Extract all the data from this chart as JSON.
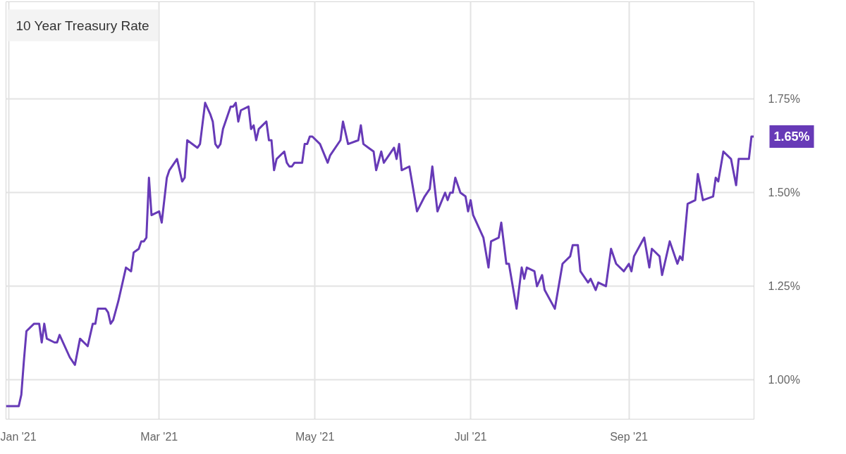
{
  "chart_data": {
    "type": "line",
    "title": "10 Year Treasury Rate",
    "x": [
      "2020-12-31",
      "2021-01-05",
      "2021-01-06",
      "2021-01-07",
      "2021-01-08",
      "2021-01-11",
      "2021-01-13",
      "2021-01-14",
      "2021-01-15",
      "2021-01-16",
      "2021-01-19",
      "2021-01-20",
      "2021-01-21",
      "2021-01-25",
      "2021-01-27",
      "2021-01-29",
      "2021-02-01",
      "2021-02-03",
      "2021-02-04",
      "2021-02-05",
      "2021-02-08",
      "2021-02-09",
      "2021-02-10",
      "2021-02-11",
      "2021-02-13",
      "2021-02-16",
      "2021-02-18",
      "2021-02-19",
      "2021-02-21",
      "2021-02-22",
      "2021-02-23",
      "2021-02-24",
      "2021-02-25",
      "2021-02-26",
      "2021-03-01",
      "2021-03-02",
      "2021-03-04",
      "2021-03-05",
      "2021-03-08",
      "2021-03-10",
      "2021-03-11",
      "2021-03-12",
      "2021-03-16",
      "2021-03-17",
      "2021-03-19",
      "2021-03-21",
      "2021-03-22",
      "2021-03-23",
      "2021-03-24",
      "2021-03-25",
      "2021-03-26",
      "2021-03-29",
      "2021-03-30",
      "2021-03-31",
      "2021-04-01",
      "2021-04-02",
      "2021-04-05",
      "2021-04-06",
      "2021-04-07",
      "2021-04-08",
      "2021-04-09",
      "2021-04-12",
      "2021-04-13",
      "2021-04-14",
      "2021-04-15",
      "2021-04-16",
      "2021-04-19",
      "2021-04-20",
      "2021-04-21",
      "2021-04-22",
      "2021-04-23",
      "2021-04-26",
      "2021-04-27",
      "2021-04-28",
      "2021-04-29",
      "2021-04-30",
      "2021-05-03",
      "2021-05-06",
      "2021-05-07",
      "2021-05-11",
      "2021-05-12",
      "2021-05-14",
      "2021-05-18",
      "2021-05-19",
      "2021-05-20",
      "2021-05-22",
      "2021-05-24",
      "2021-05-25",
      "2021-05-27",
      "2021-05-28",
      "2021-06-01",
      "2021-06-02",
      "2021-06-03",
      "2021-06-04",
      "2021-06-07",
      "2021-06-10",
      "2021-06-13",
      "2021-06-15",
      "2021-06-16",
      "2021-06-18",
      "2021-06-21",
      "2021-06-22",
      "2021-06-23",
      "2021-06-24",
      "2021-06-25",
      "2021-06-27",
      "2021-06-29",
      "2021-06-30",
      "2021-07-01",
      "2021-07-02",
      "2021-07-06",
      "2021-07-08",
      "2021-07-09",
      "2021-07-12",
      "2021-07-13",
      "2021-07-15",
      "2021-07-16",
      "2021-07-19",
      "2021-07-21",
      "2021-07-22",
      "2021-07-23",
      "2021-07-26",
      "2021-07-27",
      "2021-07-29",
      "2021-07-30",
      "2021-08-03",
      "2021-08-06",
      "2021-08-09",
      "2021-08-10",
      "2021-08-12",
      "2021-08-13",
      "2021-08-16",
      "2021-08-17",
      "2021-08-19",
      "2021-08-20",
      "2021-08-23",
      "2021-08-25",
      "2021-08-27",
      "2021-08-30",
      "2021-09-01",
      "2021-09-02",
      "2021-09-03",
      "2021-09-07",
      "2021-09-09",
      "2021-09-10",
      "2021-09-13",
      "2021-09-14",
      "2021-09-17",
      "2021-09-20",
      "2021-09-21",
      "2021-09-22",
      "2021-09-24",
      "2021-09-27",
      "2021-09-28",
      "2021-09-30",
      "2021-10-04",
      "2021-10-05",
      "2021-10-06",
      "2021-10-08",
      "2021-10-11",
      "2021-10-13",
      "2021-10-14",
      "2021-10-18",
      "2021-10-19",
      "2021-10-20"
    ],
    "series": [
      {
        "color": "#673ab7",
        "values": [
          0.93,
          0.93,
          0.96,
          1.05,
          1.13,
          1.15,
          1.15,
          1.1,
          1.15,
          1.11,
          1.1,
          1.1,
          1.12,
          1.06,
          1.04,
          1.11,
          1.09,
          1.15,
          1.15,
          1.19,
          1.19,
          1.18,
          1.15,
          1.16,
          1.21,
          1.3,
          1.29,
          1.34,
          1.35,
          1.37,
          1.37,
          1.38,
          1.54,
          1.44,
          1.45,
          1.42,
          1.54,
          1.56,
          1.59,
          1.53,
          1.54,
          1.64,
          1.62,
          1.63,
          1.74,
          1.71,
          1.69,
          1.63,
          1.62,
          1.63,
          1.67,
          1.73,
          1.73,
          1.74,
          1.69,
          1.72,
          1.73,
          1.67,
          1.68,
          1.64,
          1.67,
          1.69,
          1.64,
          1.64,
          1.56,
          1.59,
          1.61,
          1.58,
          1.57,
          1.57,
          1.58,
          1.58,
          1.63,
          1.63,
          1.65,
          1.65,
          1.63,
          1.58,
          1.6,
          1.64,
          1.69,
          1.63,
          1.64,
          1.68,
          1.63,
          1.62,
          1.61,
          1.56,
          1.61,
          1.58,
          1.62,
          1.59,
          1.63,
          1.56,
          1.57,
          1.45,
          1.49,
          1.51,
          1.57,
          1.45,
          1.5,
          1.48,
          1.5,
          1.5,
          1.54,
          1.5,
          1.49,
          1.45,
          1.48,
          1.44,
          1.38,
          1.3,
          1.37,
          1.38,
          1.42,
          1.31,
          1.31,
          1.19,
          1.3,
          1.27,
          1.3,
          1.29,
          1.25,
          1.28,
          1.24,
          1.19,
          1.31,
          1.33,
          1.36,
          1.36,
          1.29,
          1.26,
          1.27,
          1.24,
          1.26,
          1.25,
          1.35,
          1.31,
          1.29,
          1.31,
          1.29,
          1.33,
          1.38,
          1.3,
          1.35,
          1.33,
          1.28,
          1.37,
          1.31,
          1.33,
          1.32,
          1.47,
          1.48,
          1.55,
          1.48,
          1.49,
          1.54,
          1.53,
          1.61,
          1.59,
          1.52,
          1.59,
          1.59,
          1.65,
          1.65
        ]
      }
    ],
    "xlim": [
      "2020-12-31",
      "2021-10-20"
    ],
    "xticks": [
      {
        "value": "2021-01-01",
        "label": "Jan '21"
      },
      {
        "value": "2021-03-01",
        "label": "Mar '21"
      },
      {
        "value": "2021-05-01",
        "label": "May '21"
      },
      {
        "value": "2021-07-01",
        "label": "Jul '21"
      },
      {
        "value": "2021-09-01",
        "label": "Sep '21"
      }
    ],
    "ylim": [
      0.895,
      2.01
    ],
    "yticks": [
      {
        "value": 1.0,
        "label": "1.00%"
      },
      {
        "value": 1.25,
        "label": "1.25%"
      },
      {
        "value": 1.5,
        "label": "1.50%"
      },
      {
        "value": 1.75,
        "label": "1.75%"
      }
    ],
    "grid": true,
    "line_style": "solid",
    "annotations": [
      {
        "text": "1.65%",
        "x": "2021-10-20",
        "y": 1.65
      }
    ]
  }
}
